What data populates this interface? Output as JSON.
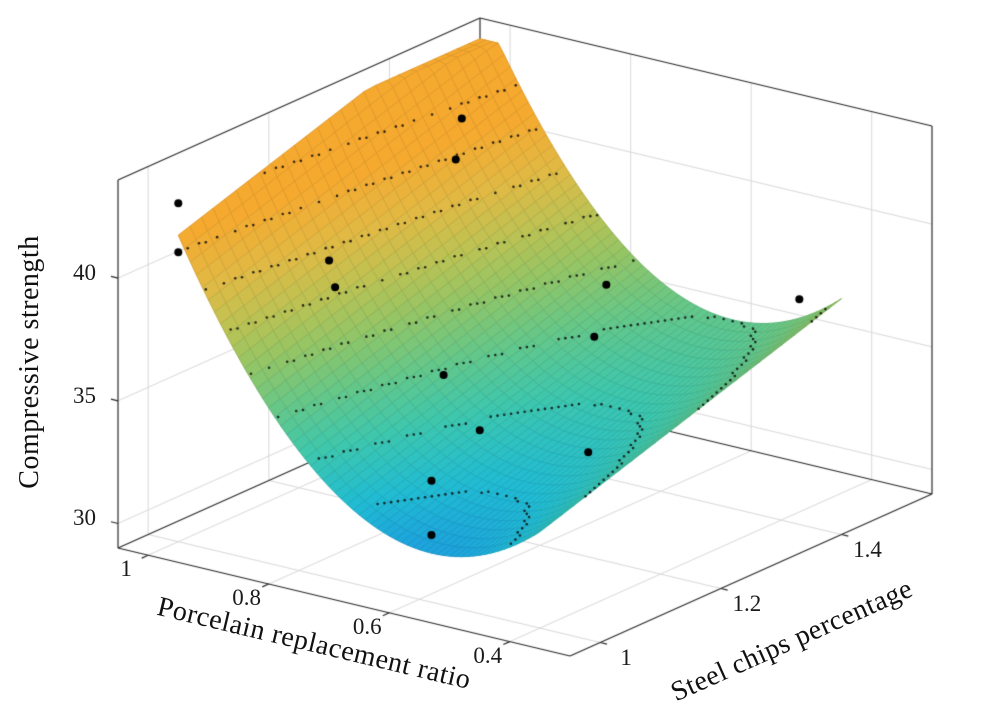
{
  "figure": {
    "background": "#ffffff"
  },
  "chart_data": {
    "type": "surface",
    "title": "",
    "xlabel": "Porcelain replacement ratio",
    "ylabel": "Steel chips percentage",
    "zlabel": "Compressive strength",
    "x_axis": {
      "limits": [
        0.3,
        1.05
      ],
      "direction": "reversed",
      "ticks": [
        {
          "label": "1",
          "value": 1
        },
        {
          "label": "0.8",
          "value": 0.8
        },
        {
          "label": "0.6",
          "value": 0.6
        },
        {
          "label": "0.4",
          "value": 0.4
        }
      ]
    },
    "y_axis": {
      "limits": [
        0.95,
        1.55
      ],
      "ticks": [
        {
          "label": "1",
          "value": 1
        },
        {
          "label": "1.2",
          "value": 1.2
        },
        {
          "label": "1.4",
          "value": 1.4
        }
      ]
    },
    "z_axis": {
      "limits": [
        29,
        44
      ],
      "ticks": [
        {
          "label": "30",
          "value": 30
        },
        {
          "label": "35",
          "value": 35
        },
        {
          "label": "40",
          "value": 40
        }
      ]
    },
    "surface": {
      "x_range": [
        0.4,
        1.0
      ],
      "y_range": [
        1.0,
        1.5
      ],
      "model": "z = base + a2*(x - x0)^2 + b1*(y - y0), clipped to z_clip",
      "coeffs": {
        "base": 31,
        "a2": 59.5,
        "x0": 0.58,
        "b1": 8,
        "y0": 1.0
      },
      "z_clip": [
        29,
        44
      ]
    },
    "contour_levels": [
      30.5,
      32,
      33.5,
      35,
      36.5,
      38,
      39.5,
      41,
      42.5
    ],
    "colormap": {
      "domain": [
        29.5,
        41.5
      ],
      "stops": [
        [
          0.0,
          "#1a7ad4"
        ],
        [
          0.1,
          "#1b9be0"
        ],
        [
          0.22,
          "#21bcd3"
        ],
        [
          0.35,
          "#3ec7ad"
        ],
        [
          0.48,
          "#67c787"
        ],
        [
          0.6,
          "#93c566"
        ],
        [
          0.72,
          "#bdc253"
        ],
        [
          0.84,
          "#e0ba45"
        ],
        [
          1.0,
          "#f6a92f"
        ]
      ]
    },
    "scatter_points": [
      [
        1.0,
        1.0,
        42.8
      ],
      [
        1.0,
        1.0,
        40.8
      ],
      [
        0.9,
        1.15,
        39.4
      ],
      [
        0.9,
        1.16,
        38.2
      ],
      [
        0.91,
        1.38,
        42.6
      ],
      [
        0.9,
        1.36,
        41.2
      ],
      [
        0.76,
        1.2,
        35.0
      ],
      [
        0.7,
        1.2,
        33.1
      ],
      [
        0.66,
        1.08,
        32.6
      ],
      [
        0.5,
        1.21,
        40.1
      ],
      [
        0.5,
        1.19,
        38.2
      ],
      [
        0.5,
        1.18,
        33.6
      ],
      [
        0.41,
        1.44,
        37.5
      ],
      [
        0.6,
        1.02,
        31.4
      ]
    ],
    "grid": true,
    "scatter_color": "#000000",
    "grid_color": "#d9d9d9",
    "box_color": "#2a2a2a"
  }
}
